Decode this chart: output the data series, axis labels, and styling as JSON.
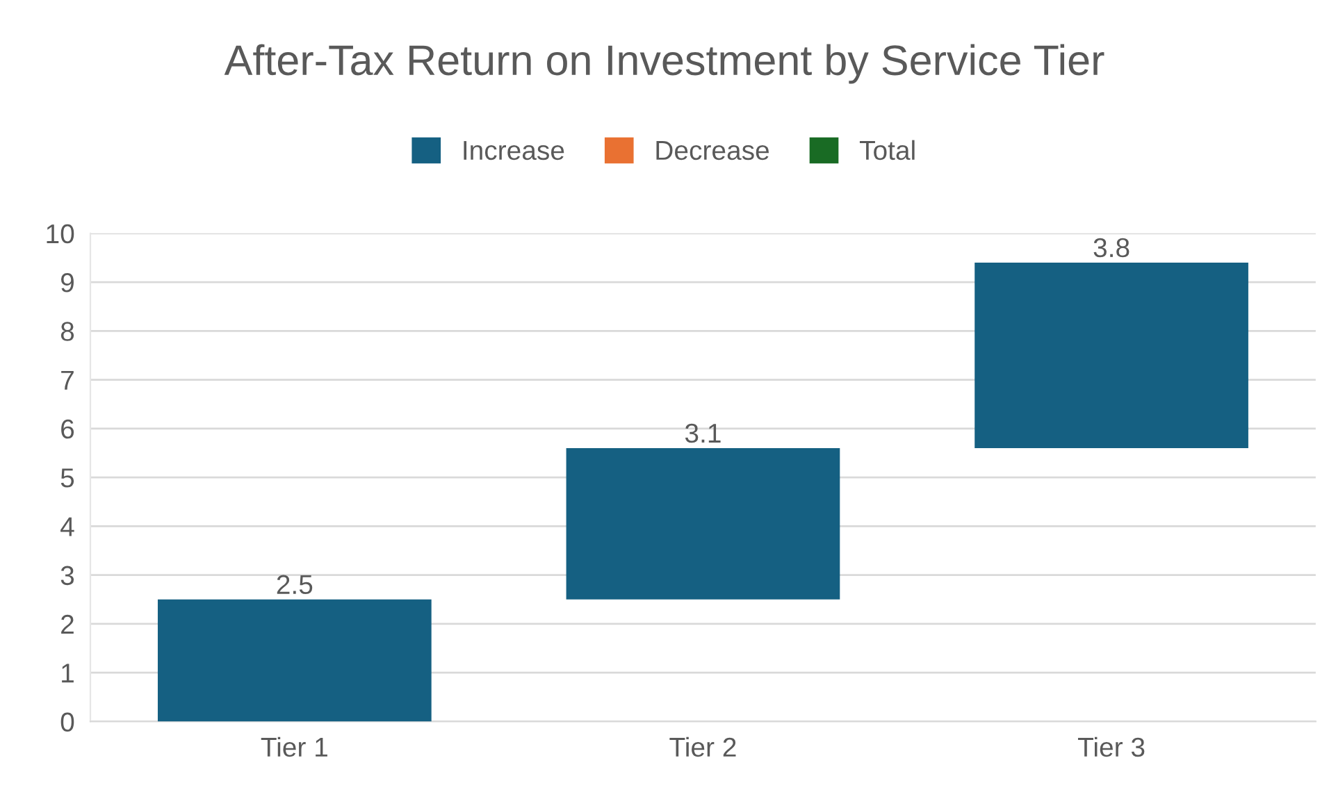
{
  "chart_data": {
    "type": "bar",
    "title": "After-Tax Return on Investment by Service Tier",
    "categories": [
      "Tier 1",
      "Tier 2",
      "Tier 3"
    ],
    "series": [
      {
        "name": "Increase",
        "color": "#156082",
        "values": [
          2.5,
          3.1,
          3.8
        ],
        "base": [
          0,
          2.5,
          5.6
        ]
      },
      {
        "name": "Decrease",
        "color": "#e97132",
        "values": [
          null,
          null,
          null
        ]
      },
      {
        "name": "Total",
        "color": "#196b24",
        "values": [
          null,
          null,
          null
        ]
      }
    ],
    "ylim": [
      0,
      10
    ],
    "yticks": [
      0,
      1,
      2,
      3,
      4,
      5,
      6,
      7,
      8,
      9,
      10
    ],
    "grid": "y",
    "legend": "top",
    "data_labels": true
  }
}
